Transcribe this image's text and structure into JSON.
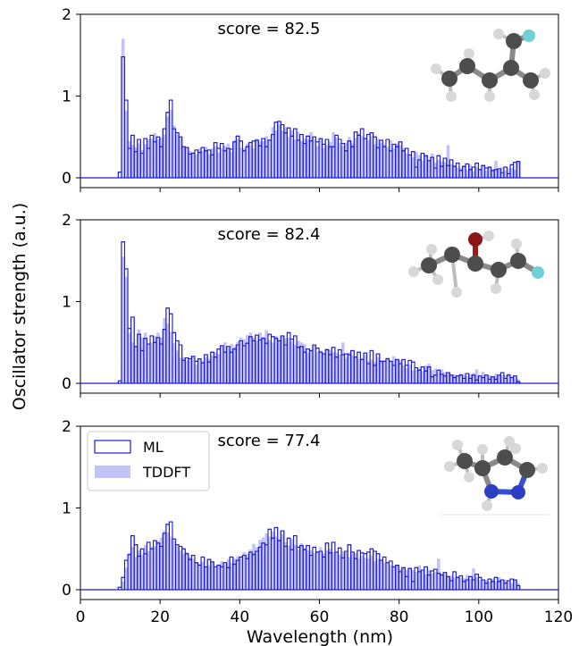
{
  "figure": {
    "ylabel": "Oscillator strength (a.u.)",
    "xlabel": "Wavelength (nm)",
    "legend": {
      "placement": "top-left of bottom panel",
      "entries": [
        "ML",
        "TDDFT"
      ]
    }
  },
  "colors": {
    "ml_edge": "#1a1ad6",
    "tddft_fill": "#c3c3f7",
    "axis": "#000000"
  },
  "chart_data": [
    {
      "type": "bar",
      "annotation": "score = 82.5",
      "molecule_icon": "molecule-ball-and-stick-with-fluorine",
      "xlim": [
        0,
        120
      ],
      "ylim": [
        0,
        2
      ],
      "yticks": [
        0,
        1,
        2
      ],
      "xticks": [
        0,
        20,
        40,
        60,
        80,
        100,
        120
      ],
      "x_start": 9.5,
      "bin_width": 0.8,
      "series": [
        {
          "name": "ML",
          "values": [
            0.07,
            1.48,
            0.95,
            0.36,
            0.52,
            0.32,
            0.47,
            0.3,
            0.48,
            0.36,
            0.52,
            0.44,
            0.5,
            0.38,
            0.6,
            0.8,
            0.95,
            0.6,
            0.55,
            0.5,
            0.38,
            0.37,
            0.29,
            0.3,
            0.34,
            0.31,
            0.37,
            0.33,
            0.34,
            0.28,
            0.43,
            0.36,
            0.42,
            0.33,
            0.36,
            0.35,
            0.44,
            0.51,
            0.45,
            0.33,
            0.38,
            0.43,
            0.45,
            0.46,
            0.39,
            0.48,
            0.38,
            0.46,
            0.53,
            0.68,
            0.69,
            0.65,
            0.55,
            0.61,
            0.51,
            0.6,
            0.46,
            0.53,
            0.42,
            0.51,
            0.45,
            0.5,
            0.44,
            0.48,
            0.41,
            0.47,
            0.38,
            0.38,
            0.52,
            0.47,
            0.42,
            0.33,
            0.45,
            0.38,
            0.56,
            0.52,
            0.6,
            0.48,
            0.53,
            0.55,
            0.5,
            0.37,
            0.46,
            0.38,
            0.47,
            0.33,
            0.41,
            0.38,
            0.44,
            0.33,
            0.36,
            0.28,
            0.32,
            0.13,
            0.22,
            0.3,
            0.27,
            0.21,
            0.25,
            0.12,
            0.27,
            0.14,
            0.24,
            0.15,
            0.22,
            0.14,
            0.18,
            0.09,
            0.14,
            0.17,
            0.1,
            0.13,
            0.18,
            0.1,
            0.15,
            0.12,
            0.13,
            0.09,
            0.1,
            0.11,
            0.06,
            0.13,
            0.05,
            0.16,
            0.19,
            0.2
          ]
        },
        {
          "name": "TDDFT",
          "values": [
            0,
            1.7,
            0.82,
            0.45,
            0.4,
            0.37,
            0.42,
            0.34,
            0.41,
            0.47,
            0.48,
            0.55,
            0.47,
            0.49,
            0.53,
            0.75,
            0.83,
            0.64,
            0.53,
            0.49,
            0.37,
            0.36,
            0.33,
            0.32,
            0.29,
            0.36,
            0.33,
            0.38,
            0.29,
            0.36,
            0.39,
            0.31,
            0.36,
            0.39,
            0.42,
            0.32,
            0.46,
            0.48,
            0.37,
            0.36,
            0.42,
            0.4,
            0.36,
            0.48,
            0.44,
            0.45,
            0.51,
            0.47,
            0.62,
            0.58,
            0.65,
            0.58,
            0.62,
            0.5,
            0.58,
            0.47,
            0.56,
            0.45,
            0.48,
            0.47,
            0.56,
            0.48,
            0.39,
            0.48,
            0.36,
            0.4,
            0.44,
            0.56,
            0.49,
            0.43,
            0.39,
            0.43,
            0.5,
            0.42,
            0.49,
            0.54,
            0.51,
            0.49,
            0.46,
            0.51,
            0.41,
            0.48,
            0.43,
            0.41,
            0.38,
            0.46,
            0.36,
            0.42,
            0.4,
            0.36,
            0.3,
            0.28,
            0.25,
            0.32,
            0.28,
            0.21,
            0.27,
            0.2,
            0.3,
            0.19,
            0.22,
            0.2,
            0.19,
            0.4,
            0.17,
            0.15,
            0.13,
            0.12,
            0.15,
            0.1,
            0.16,
            0.08,
            0.13,
            0.11,
            0.16,
            0.09,
            0.14,
            0.1,
            0.21,
            0.1,
            0.13,
            0.09,
            0.12,
            0.12,
            0.1,
            0.2
          ]
        }
      ]
    },
    {
      "type": "bar",
      "annotation": "score = 82.4",
      "molecule_icon": "molecule-ball-and-stick-with-oxygen-and-fluorine",
      "xlim": [
        0,
        120
      ],
      "ylim": [
        0,
        2
      ],
      "yticks": [
        0,
        1,
        2
      ],
      "xticks": [
        0,
        20,
        40,
        60,
        80,
        100,
        120
      ],
      "x_start": 9.5,
      "bin_width": 0.8,
      "series": [
        {
          "name": "ML",
          "values": [
            0.03,
            1.73,
            1.4,
            0.67,
            0.81,
            0.45,
            0.6,
            0.4,
            0.55,
            0.48,
            0.58,
            0.5,
            0.56,
            0.48,
            0.66,
            0.92,
            0.85,
            0.62,
            0.52,
            0.47,
            0.28,
            0.31,
            0.3,
            0.33,
            0.27,
            0.3,
            0.25,
            0.35,
            0.26,
            0.38,
            0.32,
            0.42,
            0.46,
            0.38,
            0.45,
            0.38,
            0.42,
            0.47,
            0.52,
            0.46,
            0.49,
            0.57,
            0.52,
            0.59,
            0.53,
            0.55,
            0.49,
            0.6,
            0.57,
            0.55,
            0.52,
            0.58,
            0.47,
            0.62,
            0.54,
            0.58,
            0.44,
            0.45,
            0.38,
            0.42,
            0.4,
            0.47,
            0.43,
            0.38,
            0.36,
            0.41,
            0.35,
            0.44,
            0.32,
            0.41,
            0.35,
            0.36,
            0.35,
            0.4,
            0.32,
            0.38,
            0.29,
            0.37,
            0.24,
            0.4,
            0.22,
            0.36,
            0.27,
            0.27,
            0.3,
            0.27,
            0.22,
            0.29,
            0.24,
            0.29,
            0.22,
            0.28,
            0.26,
            0.19,
            0.16,
            0.2,
            0.15,
            0.2,
            0.08,
            0.1,
            0.16,
            0.11,
            0.09,
            0.13,
            0.1,
            0.07,
            0.09,
            0.1,
            0.06,
            0.12,
            0.06,
            0.1,
            0.04,
            0.09,
            0.07,
            0.1,
            0.05,
            0.08,
            0.05,
            0.1,
            0.13,
            0.06,
            0.1,
            0.07,
            0.09,
            0.02
          ]
        },
        {
          "name": "TDDFT",
          "values": [
            0,
            1.55,
            1.3,
            0.62,
            0.5,
            0.45,
            0.66,
            0.56,
            0.62,
            0.48,
            0.5,
            0.58,
            0.62,
            0.56,
            0.8,
            0.73,
            0.63,
            0.49,
            0.4,
            0.31,
            0.32,
            0.28,
            0.28,
            0.32,
            0.23,
            0.3,
            0.27,
            0.32,
            0.3,
            0.34,
            0.38,
            0.36,
            0.45,
            0.5,
            0.43,
            0.48,
            0.45,
            0.51,
            0.56,
            0.54,
            0.59,
            0.62,
            0.56,
            0.52,
            0.62,
            0.57,
            0.65,
            0.53,
            0.5,
            0.58,
            0.52,
            0.58,
            0.55,
            0.56,
            0.52,
            0.47,
            0.52,
            0.5,
            0.48,
            0.37,
            0.41,
            0.47,
            0.39,
            0.4,
            0.36,
            0.43,
            0.41,
            0.38,
            0.37,
            0.35,
            0.5,
            0.31,
            0.38,
            0.34,
            0.32,
            0.3,
            0.31,
            0.35,
            0.27,
            0.29,
            0.26,
            0.32,
            0.27,
            0.26,
            0.32,
            0.26,
            0.33,
            0.3,
            0.28,
            0.22,
            0.19,
            0.23,
            0.16,
            0.17,
            0.18,
            0.15,
            0.22,
            0.24,
            0.16,
            0.18,
            0.14,
            0.17,
            0.14,
            0.12,
            0.1,
            0.11,
            0.09,
            0.12,
            0.1,
            0.09,
            0.11,
            0.13,
            0.17,
            0.08,
            0.14,
            0.09,
            0.1,
            0.09,
            0.12,
            0.09,
            0.1,
            0.1,
            0.12,
            0.08,
            0.07,
            0.05
          ]
        }
      ]
    },
    {
      "type": "bar",
      "annotation": "score = 77.4",
      "molecule_icon": "molecule-ball-and-stick-with-nitrogen-ring",
      "xlim": [
        0,
        120
      ],
      "ylim": [
        0,
        2
      ],
      "yticks": [
        0,
        1,
        2
      ],
      "xticks": [
        0,
        20,
        40,
        60,
        80,
        100,
        120
      ],
      "x_start": 9.5,
      "bin_width": 0.8,
      "series": [
        {
          "name": "ML",
          "values": [
            0.03,
            0.15,
            0.36,
            0.43,
            0.66,
            0.55,
            0.41,
            0.5,
            0.44,
            0.58,
            0.5,
            0.6,
            0.57,
            0.53,
            0.69,
            0.8,
            0.83,
            0.62,
            0.55,
            0.53,
            0.5,
            0.44,
            0.37,
            0.42,
            0.33,
            0.3,
            0.4,
            0.28,
            0.37,
            0.34,
            0.28,
            0.3,
            0.28,
            0.33,
            0.27,
            0.4,
            0.31,
            0.36,
            0.4,
            0.42,
            0.38,
            0.46,
            0.43,
            0.47,
            0.52,
            0.57,
            0.55,
            0.74,
            0.63,
            0.76,
            0.6,
            0.72,
            0.53,
            0.63,
            0.49,
            0.66,
            0.52,
            0.54,
            0.49,
            0.54,
            0.42,
            0.52,
            0.46,
            0.47,
            0.4,
            0.57,
            0.45,
            0.58,
            0.46,
            0.51,
            0.39,
            0.47,
            0.55,
            0.46,
            0.38,
            0.48,
            0.45,
            0.44,
            0.46,
            0.5,
            0.47,
            0.44,
            0.36,
            0.4,
            0.33,
            0.35,
            0.28,
            0.3,
            0.22,
            0.27,
            0.16,
            0.26,
            0.1,
            0.27,
            0.22,
            0.24,
            0.28,
            0.18,
            0.23,
            0.25,
            0.2,
            0.18,
            0.21,
            0.16,
            0.11,
            0.22,
            0.15,
            0.17,
            0.1,
            0.12,
            0.16,
            0.12,
            0.19,
            0.15,
            0.12,
            0.08,
            0.13,
            0.1,
            0.15,
            0.1,
            0.12,
            0.08,
            0.11,
            0.13,
            0.12,
            0.05
          ]
        },
        {
          "name": "TDDFT",
          "values": [
            0,
            0.1,
            0.27,
            0.45,
            0.52,
            0.4,
            0.48,
            0.43,
            0.55,
            0.47,
            0.52,
            0.53,
            0.6,
            0.64,
            0.72,
            0.7,
            0.65,
            0.6,
            0.53,
            0.48,
            0.44,
            0.46,
            0.4,
            0.38,
            0.34,
            0.32,
            0.34,
            0.28,
            0.3,
            0.33,
            0.27,
            0.31,
            0.35,
            0.31,
            0.37,
            0.33,
            0.38,
            0.41,
            0.41,
            0.46,
            0.44,
            0.49,
            0.56,
            0.52,
            0.61,
            0.64,
            0.69,
            0.65,
            0.71,
            0.65,
            0.62,
            0.68,
            0.58,
            0.54,
            0.62,
            0.55,
            0.49,
            0.57,
            0.51,
            0.48,
            0.48,
            0.45,
            0.47,
            0.52,
            0.44,
            0.48,
            0.5,
            0.46,
            0.46,
            0.43,
            0.47,
            0.46,
            0.4,
            0.44,
            0.45,
            0.38,
            0.42,
            0.39,
            0.38,
            0.42,
            0.35,
            0.38,
            0.36,
            0.33,
            0.32,
            0.3,
            0.28,
            0.3,
            0.25,
            0.27,
            0.24,
            0.26,
            0.24,
            0.22,
            0.3,
            0.23,
            0.19,
            0.24,
            0.2,
            0.22,
            0.38,
            0.2,
            0.19,
            0.16,
            0.17,
            0.15,
            0.16,
            0.15,
            0.14,
            0.18,
            0.13,
            0.26,
            0.15,
            0.12,
            0.11,
            0.12,
            0.1,
            0.13,
            0.1,
            0.15,
            0.11,
            0.12,
            0.1,
            0.08,
            0.12,
            0.08
          ]
        }
      ]
    }
  ]
}
